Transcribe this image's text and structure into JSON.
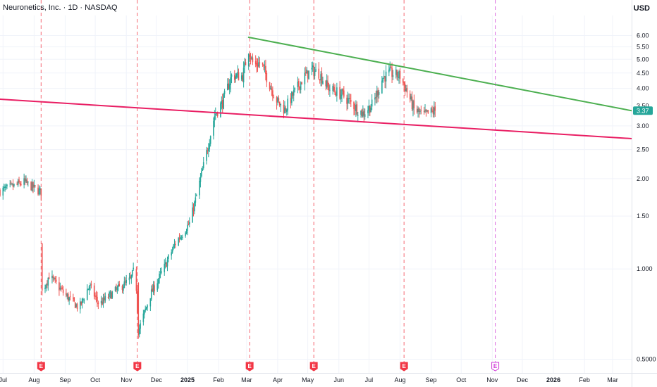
{
  "header": {
    "title": "Neuronetics, Inc. · 1D · NASDAQ",
    "currency": "USD"
  },
  "colors": {
    "up": "#26a69a",
    "down": "#ef5350",
    "green_trendline": "#4caf50",
    "pink_trendline": "#e91e63",
    "earnings_past": "#f23645",
    "earnings_future": "#d03bd8",
    "grid": "#f0f3fa",
    "last_price_bg": "#26a69a"
  },
  "chart_data": {
    "type": "candlestick",
    "symbol": "Neuronetics, Inc.",
    "interval": "1D",
    "exchange": "NASDAQ",
    "y_scale": "log",
    "ylim": [
      0.45,
      7.0
    ],
    "y_ticks": [
      "6.00",
      "5.50",
      "5.00",
      "4.50",
      "4.00",
      "3.50",
      "3.00",
      "2.50",
      "2.00",
      "1.50",
      "1.000",
      "0.5000"
    ],
    "x_range": [
      "2024-06-28",
      "2026-03-20"
    ],
    "x_ticks": [
      {
        "date": "2024-07-01",
        "label": "Jul"
      },
      {
        "date": "2024-08-01",
        "label": "Aug"
      },
      {
        "date": "2024-09-01",
        "label": "Sep"
      },
      {
        "date": "2024-10-01",
        "label": "Oct"
      },
      {
        "date": "2024-11-01",
        "label": "Nov"
      },
      {
        "date": "2024-12-01",
        "label": "Dec"
      },
      {
        "date": "2025-01-01",
        "label": "2025",
        "bold": true
      },
      {
        "date": "2025-02-01",
        "label": "Feb"
      },
      {
        "date": "2025-03-01",
        "label": "Mar"
      },
      {
        "date": "2025-04-01",
        "label": "Apr"
      },
      {
        "date": "2025-05-01",
        "label": "May"
      },
      {
        "date": "2025-06-01",
        "label": "Jun"
      },
      {
        "date": "2025-07-01",
        "label": "Jul"
      },
      {
        "date": "2025-08-01",
        "label": "Aug"
      },
      {
        "date": "2025-09-01",
        "label": "Sep"
      },
      {
        "date": "2025-10-01",
        "label": "Oct"
      },
      {
        "date": "2025-11-01",
        "label": "Nov"
      },
      {
        "date": "2025-12-01",
        "label": "Dec"
      },
      {
        "date": "2026-01-01",
        "label": "2026",
        "bold": true
      },
      {
        "date": "2026-02-01",
        "label": "Feb"
      },
      {
        "date": "2026-03-01",
        "label": "Mar"
      }
    ],
    "price_path": [
      [
        "2024-06-28",
        1.82
      ],
      [
        "2024-07-10",
        1.88
      ],
      [
        "2024-07-22",
        1.95
      ],
      [
        "2024-08-01",
        1.86
      ],
      [
        "2024-08-08",
        1.8
      ],
      [
        "2024-08-09",
        0.84
      ],
      [
        "2024-08-16",
        0.95
      ],
      [
        "2024-09-01",
        0.82
      ],
      [
        "2024-09-15",
        0.74
      ],
      [
        "2024-09-25",
        0.88
      ],
      [
        "2024-10-05",
        0.76
      ],
      [
        "2024-10-20",
        0.84
      ],
      [
        "2024-11-05",
        0.92
      ],
      [
        "2024-11-10",
        1.02
      ],
      [
        "2024-11-13",
        0.62
      ],
      [
        "2024-11-25",
        0.82
      ],
      [
        "2024-12-10",
        1.03
      ],
      [
        "2024-12-20",
        1.22
      ],
      [
        "2025-01-03",
        1.42
      ],
      [
        "2025-01-10",
        1.75
      ],
      [
        "2025-01-20",
        2.45
      ],
      [
        "2025-01-28",
        3.25
      ],
      [
        "2025-02-05",
        3.6
      ],
      [
        "2025-02-14",
        4.4
      ],
      [
        "2025-02-25",
        4.4
      ],
      [
        "2025-03-03",
        5.4
      ],
      [
        "2025-03-08",
        4.75
      ],
      [
        "2025-03-15",
        4.9
      ],
      [
        "2025-03-25",
        4.05
      ],
      [
        "2025-04-01",
        3.6
      ],
      [
        "2025-04-08",
        3.4
      ],
      [
        "2025-04-18",
        3.9
      ],
      [
        "2025-04-28",
        4.4
      ],
      [
        "2025-05-05",
        4.6
      ],
      [
        "2025-05-12",
        4.5
      ],
      [
        "2025-05-22",
        4.0
      ],
      [
        "2025-06-05",
        3.8
      ],
      [
        "2025-06-18",
        3.45
      ],
      [
        "2025-06-25",
        3.3
      ],
      [
        "2025-07-05",
        3.55
      ],
      [
        "2025-07-15",
        4.35
      ],
      [
        "2025-07-22",
        4.5
      ],
      [
        "2025-08-01",
        4.4
      ],
      [
        "2025-08-08",
        3.9
      ],
      [
        "2025-08-15",
        3.4
      ],
      [
        "2025-08-25",
        3.25
      ],
      [
        "2025-09-05",
        3.37
      ]
    ],
    "last_price": 3.37,
    "last_price_label": "3.37",
    "earnings": [
      {
        "date": "2024-08-08",
        "label": "E",
        "future": false
      },
      {
        "date": "2024-11-12",
        "label": "E",
        "future": false
      },
      {
        "date": "2025-03-04",
        "label": "E",
        "future": false
      },
      {
        "date": "2025-05-07",
        "label": "E",
        "future": false
      },
      {
        "date": "2025-08-05",
        "label": "E",
        "future": false
      },
      {
        "date": "2025-11-04",
        "label": "E",
        "future": true
      }
    ],
    "trendlines": [
      {
        "color": "green",
        "from": [
          "2025-03-03",
          5.92
        ],
        "to": [
          "2026-03-20",
          3.37
        ]
      },
      {
        "color": "pink",
        "from": [
          "2024-06-28",
          3.68
        ],
        "to": [
          "2026-03-20",
          2.72
        ]
      }
    ],
    "grid": true
  }
}
